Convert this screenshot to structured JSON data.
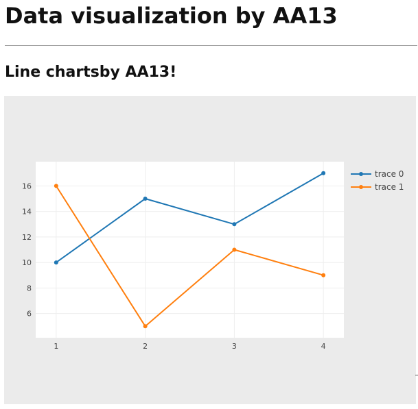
{
  "page": {
    "title": "Data visualization by AA13",
    "subtitle": "Line chartsby AA13!"
  },
  "chart_data": {
    "type": "line",
    "x": [
      1,
      2,
      3,
      4
    ],
    "series": [
      {
        "name": "trace 0",
        "values": [
          10,
          15,
          13,
          17
        ],
        "color": "#1f77b4"
      },
      {
        "name": "trace 1",
        "values": [
          16,
          5,
          11,
          9
        ],
        "color": "#ff7f0e"
      }
    ],
    "xlim": [
      0.77,
      4.23
    ],
    "ylim": [
      4.1,
      17.9
    ],
    "x_ticks": [
      1,
      2,
      3,
      4
    ],
    "y_ticks": [
      6,
      8,
      10,
      12,
      14,
      16
    ],
    "grid": true,
    "legend_position": "top-right",
    "plot_background": "#ffffff",
    "paper_background": "#ebebeb"
  }
}
